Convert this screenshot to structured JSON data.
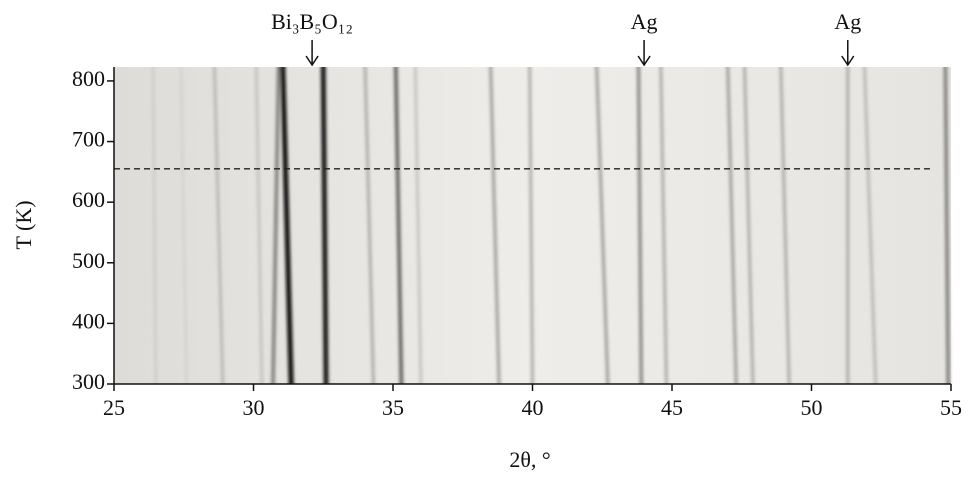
{
  "chart_data": {
    "type": "heatmap",
    "xlabel": "2θ, °",
    "ylabel": "T (K)",
    "xlim": [
      25,
      55
    ],
    "xticks": [
      25,
      30,
      35,
      40,
      45,
      50,
      55
    ],
    "ylim": [
      300,
      823
    ],
    "yticks": [
      300,
      400,
      500,
      600,
      700,
      800
    ],
    "peaks": {
      "x_bottom": [
        26.5,
        27.6,
        28.9,
        30.3,
        30.7,
        31.35,
        32.6,
        34.3,
        35.3,
        36.0,
        38.8,
        40.0,
        42.7,
        43.9,
        44.8,
        47.3,
        47.9,
        49.2,
        51.3,
        52.3,
        54.9
      ],
      "x_top": [
        26.4,
        27.4,
        28.6,
        30.1,
        30.9,
        31.05,
        32.5,
        34.0,
        35.1,
        35.8,
        38.5,
        39.9,
        42.3,
        43.8,
        44.6,
        47.0,
        47.6,
        48.9,
        51.3,
        51.9,
        54.8
      ],
      "intensity": [
        0.15,
        0.12,
        0.25,
        0.2,
        0.5,
        1.0,
        0.95,
        0.3,
        0.6,
        0.2,
        0.35,
        0.3,
        0.35,
        0.45,
        0.3,
        0.35,
        0.3,
        0.3,
        0.3,
        0.25,
        0.5
      ]
    },
    "dashed_line": {
      "y": 655,
      "x_end": 54.3
    },
    "annotations": [
      {
        "text": "Bi₃B₅O₁₂",
        "x": 32.1
      },
      {
        "text": "Ag",
        "x": 44.0
      },
      {
        "text": "Ag",
        "x": 51.3
      }
    ]
  }
}
